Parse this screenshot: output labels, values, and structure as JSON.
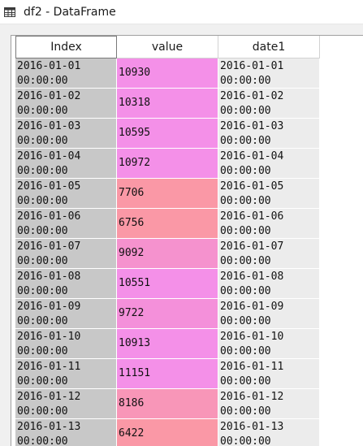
{
  "window": {
    "title": "df2 - DataFrame"
  },
  "colors": {
    "pink": "#f490e8",
    "salmon": "#fa98a6"
  },
  "table": {
    "columns": [
      "Index",
      "value",
      "date1"
    ],
    "rows": [
      {
        "index": "2016-01-01\n00:00:00",
        "value": "10930",
        "date1": "2016-01-01\n00:00:00",
        "color": "#f490e8"
      },
      {
        "index": "2016-01-02\n00:00:00",
        "value": "10318",
        "date1": "2016-01-02\n00:00:00",
        "color": "#f490e8"
      },
      {
        "index": "2016-01-03\n00:00:00",
        "value": "10595",
        "date1": "2016-01-03\n00:00:00",
        "color": "#f490e8"
      },
      {
        "index": "2016-01-04\n00:00:00",
        "value": "10972",
        "date1": "2016-01-04\n00:00:00",
        "color": "#f490e8"
      },
      {
        "index": "2016-01-05\n00:00:00",
        "value": "7706",
        "date1": "2016-01-05\n00:00:00",
        "color": "#fa98a6"
      },
      {
        "index": "2016-01-06\n00:00:00",
        "value": "6756",
        "date1": "2016-01-06\n00:00:00",
        "color": "#fa98a6"
      },
      {
        "index": "2016-01-07\n00:00:00",
        "value": "9092",
        "date1": "2016-01-07\n00:00:00",
        "color": "#f592ce"
      },
      {
        "index": "2016-01-08\n00:00:00",
        "value": "10551",
        "date1": "2016-01-08\n00:00:00",
        "color": "#f490e8"
      },
      {
        "index": "2016-01-09\n00:00:00",
        "value": "9722",
        "date1": "2016-01-09\n00:00:00",
        "color": "#f490da"
      },
      {
        "index": "2016-01-10\n00:00:00",
        "value": "10913",
        "date1": "2016-01-10\n00:00:00",
        "color": "#f490e8"
      },
      {
        "index": "2016-01-11\n00:00:00",
        "value": "11151",
        "date1": "2016-01-11\n00:00:00",
        "color": "#f490e8"
      },
      {
        "index": "2016-01-12\n00:00:00",
        "value": "8186",
        "date1": "2016-01-12\n00:00:00",
        "color": "#f896b8"
      },
      {
        "index": "2016-01-13\n00:00:00",
        "value": "6422",
        "date1": "2016-01-13\n00:00:00",
        "color": "#fa98a6"
      }
    ]
  }
}
